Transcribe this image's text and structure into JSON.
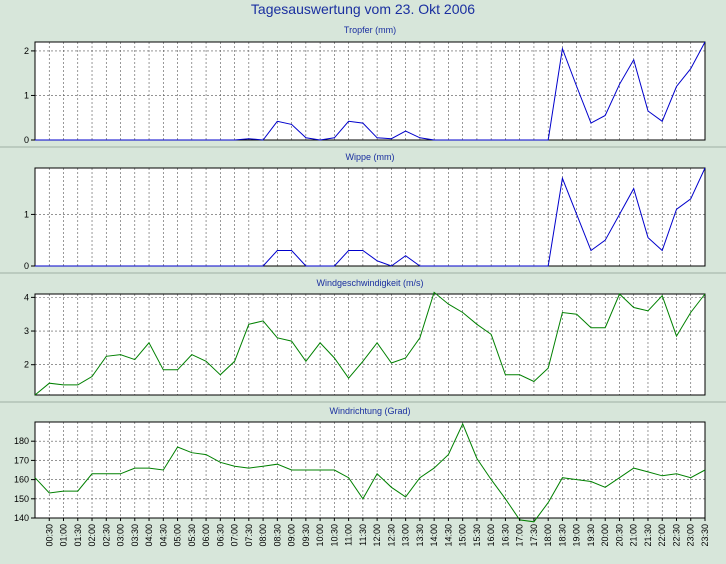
{
  "title": "Tagesauswertung vom 23. Okt 2006",
  "colors": {
    "blue_series": "#0000cc",
    "green_series": "#008000",
    "background": "#d7e6da",
    "title": "#1a2fa0"
  },
  "chart_data": [
    {
      "type": "line",
      "title": "Tropfer (mm)",
      "ylim": [
        0,
        2.2
      ],
      "yticks": [
        "0",
        "1",
        "2"
      ],
      "grid": true,
      "color": "#0000cc",
      "x": [
        "00:00",
        "00:30",
        "01:00",
        "01:30",
        "02:00",
        "02:30",
        "03:00",
        "03:30",
        "04:00",
        "04:30",
        "05:00",
        "05:30",
        "06:00",
        "06:30",
        "07:00",
        "07:30",
        "08:00",
        "08:30",
        "09:00",
        "09:30",
        "10:00",
        "10:30",
        "11:00",
        "11:30",
        "12:00",
        "12:30",
        "13:00",
        "13:30",
        "14:00",
        "14:30",
        "15:00",
        "15:30",
        "16:00",
        "16:30",
        "17:00",
        "17:30",
        "18:00",
        "18:30",
        "19:00",
        "19:30",
        "20:00",
        "20:30",
        "21:00",
        "21:30",
        "22:00",
        "22:30",
        "23:00",
        "23:30"
      ],
      "values": [
        0,
        0,
        0,
        0,
        0,
        0,
        0,
        0,
        0,
        0,
        0,
        0,
        0,
        0,
        0,
        0.03,
        0,
        0.42,
        0.35,
        0.05,
        0,
        0.05,
        0.42,
        0.38,
        0.05,
        0.03,
        0.2,
        0.05,
        0,
        0,
        0,
        0,
        0,
        0,
        0,
        0,
        0,
        2.05,
        1.2,
        0.38,
        0.55,
        1.25,
        1.8,
        0.65,
        0.42,
        1.2,
        1.6,
        2.2
      ]
    },
    {
      "type": "line",
      "title": "Wippe (mm)",
      "ylim": [
        0,
        1.9
      ],
      "yticks": [
        "0",
        "1"
      ],
      "grid": true,
      "color": "#0000cc",
      "x": [
        "00:00",
        "00:30",
        "01:00",
        "01:30",
        "02:00",
        "02:30",
        "03:00",
        "03:30",
        "04:00",
        "04:30",
        "05:00",
        "05:30",
        "06:00",
        "06:30",
        "07:00",
        "07:30",
        "08:00",
        "08:30",
        "09:00",
        "09:30",
        "10:00",
        "10:30",
        "11:00",
        "11:30",
        "12:00",
        "12:30",
        "13:00",
        "13:30",
        "14:00",
        "14:30",
        "15:00",
        "15:30",
        "16:00",
        "16:30",
        "17:00",
        "17:30",
        "18:00",
        "18:30",
        "19:00",
        "19:30",
        "20:00",
        "20:30",
        "21:00",
        "21:30",
        "22:00",
        "22:30",
        "23:00",
        "23:30"
      ],
      "values": [
        0,
        0,
        0,
        0,
        0,
        0,
        0,
        0,
        0,
        0,
        0,
        0,
        0,
        0,
        0,
        0,
        0,
        0.3,
        0.3,
        0,
        0,
        0,
        0.3,
        0.3,
        0.1,
        0,
        0.2,
        0,
        0,
        0,
        0,
        0,
        0,
        0,
        0,
        0,
        0,
        1.7,
        1.0,
        0.3,
        0.5,
        1.0,
        1.5,
        0.55,
        0.3,
        1.1,
        1.3,
        1.9
      ]
    },
    {
      "type": "line",
      "title": "Windgeschwindigkeit (m/s)",
      "ylim": [
        1.1,
        4.1
      ],
      "yticks": [
        "2",
        "3",
        "4"
      ],
      "grid": true,
      "color": "#008000",
      "x": [
        "00:00",
        "00:30",
        "01:00",
        "01:30",
        "02:00",
        "02:30",
        "03:00",
        "03:30",
        "04:00",
        "04:30",
        "05:00",
        "05:30",
        "06:00",
        "06:30",
        "07:00",
        "07:30",
        "08:00",
        "08:30",
        "09:00",
        "09:30",
        "10:00",
        "10:30",
        "11:00",
        "11:30",
        "12:00",
        "12:30",
        "13:00",
        "13:30",
        "14:00",
        "14:30",
        "15:00",
        "15:30",
        "16:00",
        "16:30",
        "17:00",
        "17:30",
        "18:00",
        "18:30",
        "19:00",
        "19:30",
        "20:00",
        "20:30",
        "21:00",
        "21:30",
        "22:00",
        "22:30",
        "23:00",
        "23:30"
      ],
      "values": [
        1.1,
        1.45,
        1.4,
        1.4,
        1.65,
        2.25,
        2.3,
        2.15,
        2.65,
        1.85,
        1.85,
        2.3,
        2.1,
        1.7,
        2.1,
        3.2,
        3.3,
        2.8,
        2.7,
        2.1,
        2.65,
        2.2,
        1.6,
        2.1,
        2.65,
        2.05,
        2.2,
        2.8,
        4.15,
        3.8,
        3.55,
        3.2,
        2.9,
        1.7,
        1.7,
        1.5,
        1.9,
        3.55,
        3.5,
        3.1,
        3.1,
        4.1,
        3.7,
        3.6,
        4.05,
        2.85,
        3.55,
        4.1
      ]
    },
    {
      "type": "line",
      "title": "Windrichtung (Grad)",
      "ylim": [
        140,
        190
      ],
      "yticks": [
        "140",
        "150",
        "160",
        "170",
        "180"
      ],
      "grid": true,
      "color": "#008000",
      "x": [
        "00:00",
        "00:30",
        "01:00",
        "01:30",
        "02:00",
        "02:30",
        "03:00",
        "03:30",
        "04:00",
        "04:30",
        "05:00",
        "05:30",
        "06:00",
        "06:30",
        "07:00",
        "07:30",
        "08:00",
        "08:30",
        "09:00",
        "09:30",
        "10:00",
        "10:30",
        "11:00",
        "11:30",
        "12:00",
        "12:30",
        "13:00",
        "13:30",
        "14:00",
        "14:30",
        "15:00",
        "15:30",
        "16:00",
        "16:30",
        "17:00",
        "17:30",
        "18:00",
        "18:30",
        "19:00",
        "19:30",
        "20:00",
        "20:30",
        "21:00",
        "21:30",
        "22:00",
        "22:30",
        "23:00",
        "23:30"
      ],
      "values": [
        161,
        153,
        154,
        154,
        163,
        163,
        163,
        166,
        166,
        165,
        177,
        174,
        173,
        169,
        167,
        166,
        167,
        168,
        165,
        165,
        165,
        165,
        161,
        150,
        163,
        156,
        151,
        161,
        166,
        173,
        189,
        171,
        160,
        150,
        139,
        138,
        148,
        161,
        160,
        159,
        156,
        161,
        166,
        164,
        162,
        163,
        161,
        165
      ],
      "xtick_labels": [
        "00:30",
        "01:00",
        "01:30",
        "02:00",
        "02:30",
        "03:00",
        "03:30",
        "04:00",
        "04:30",
        "05:00",
        "05:30",
        "06:00",
        "06:30",
        "07:00",
        "07:30",
        "08:00",
        "08:30",
        "09:00",
        "09:30",
        "10:00",
        "10:30",
        "11:00",
        "11:30",
        "12:00",
        "12:30",
        "13:00",
        "13:30",
        "14:00",
        "14:30",
        "15:00",
        "15:30",
        "16:00",
        "16:30",
        "17:00",
        "17:30",
        "18:00",
        "18:30",
        "19:00",
        "19:30",
        "20:00",
        "20:30",
        "21:00",
        "21:30",
        "22:00",
        "22:30",
        "23:00",
        "23:30"
      ]
    }
  ]
}
